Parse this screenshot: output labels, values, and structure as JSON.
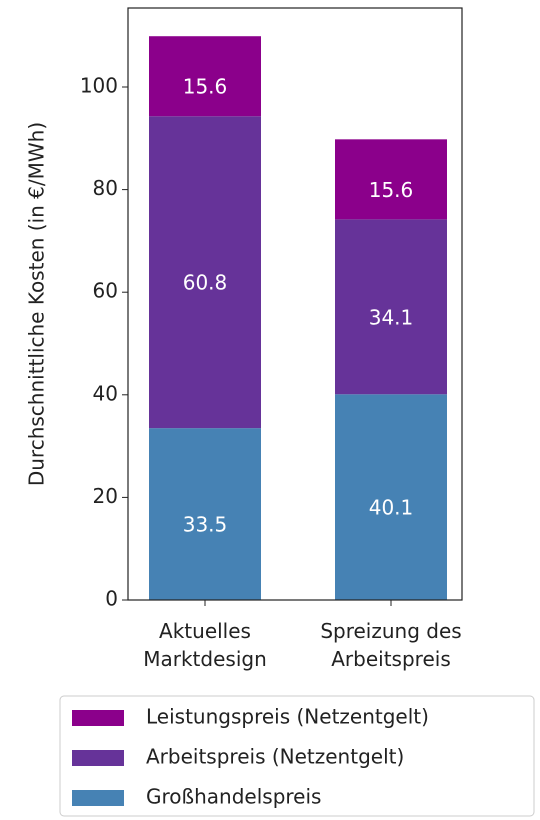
{
  "chart_data": {
    "type": "stacked_bar",
    "ylabel": "Durchschnittliche Kosten (in €/MWh)",
    "categories": [
      "Aktuelles\nMarktdesign",
      "Spreizung des\nArbeitspreis"
    ],
    "series": [
      {
        "name": "Großhandelspreis",
        "color": "#4682b4",
        "values": [
          33.5,
          40.1
        ]
      },
      {
        "name": "Arbeitspreis (Netzentgelt)",
        "color": "#663399",
        "values": [
          60.8,
          34.1
        ]
      },
      {
        "name": "Leistungspreis (Netzentgelt)",
        "color": "#8b008b",
        "values": [
          15.6,
          15.6
        ]
      }
    ],
    "ylim": [
      0,
      115.4
    ],
    "yticks": [
      0,
      20,
      40,
      60,
      80,
      100
    ]
  }
}
